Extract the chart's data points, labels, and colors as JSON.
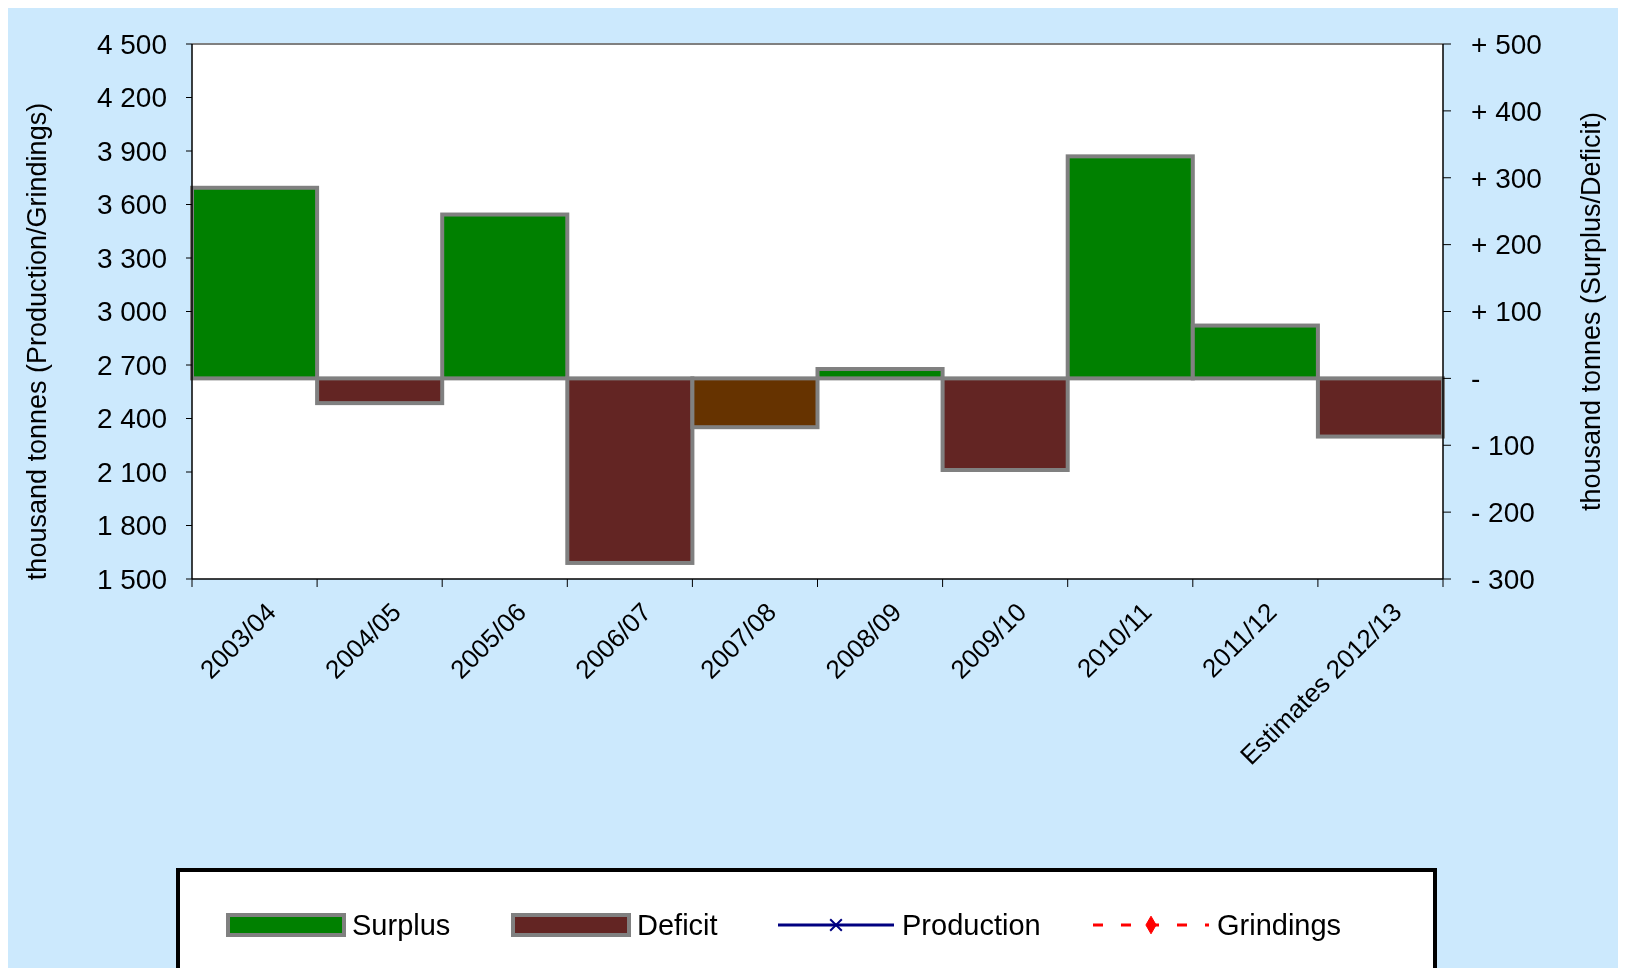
{
  "chart_data": {
    "type": "bar",
    "ylabel": "thousand tonnes (Production/Grindings)",
    "y2label": "thousand tonnes (Surplus/Deficit)",
    "categories": [
      "2003/04",
      "2004/05",
      "2005/06",
      "2006/07",
      "2007/08",
      "2008/09",
      "2009/10",
      "2010/11",
      "2011/12",
      "Estimates 2012/13"
    ],
    "series": [
      {
        "name": "Surplus",
        "axis": "y2",
        "color": "#008000",
        "values": [
          285,
          null,
          245,
          null,
          null,
          14,
          null,
          332,
          79,
          null
        ]
      },
      {
        "name": "Deficit",
        "axis": "y2",
        "color": "#632523",
        "colors": [
          null,
          "#632523",
          null,
          "#632523",
          "#663300",
          null,
          "#632523",
          null,
          null,
          "#632523"
        ],
        "values": [
          null,
          -37,
          null,
          -276,
          -73,
          null,
          -137,
          null,
          null,
          -87
        ]
      },
      {
        "name": "Production",
        "type": "line",
        "axis": "y",
        "color": "#000080",
        "marker": "cross",
        "line_style": "solid",
        "values": [
          null,
          null,
          null,
          null,
          null,
          null,
          null,
          null,
          null,
          null
        ]
      },
      {
        "name": "Grindings",
        "type": "line",
        "axis": "y",
        "color": "#ff0000",
        "marker": "diamond",
        "line_style": "dashed",
        "values": [
          null,
          null,
          null,
          null,
          null,
          null,
          null,
          null,
          null,
          null
        ]
      }
    ],
    "ylim": [
      1500,
      4500
    ],
    "yticks": [
      {
        "value": 1500,
        "label": "1 500"
      },
      {
        "value": 1800,
        "label": "1 800"
      },
      {
        "value": 2100,
        "label": "2 100"
      },
      {
        "value": 2400,
        "label": "2 400"
      },
      {
        "value": 2700,
        "label": "2 700"
      },
      {
        "value": 3000,
        "label": "3 000"
      },
      {
        "value": 3300,
        "label": "3 300"
      },
      {
        "value": 3600,
        "label": "3 600"
      },
      {
        "value": 3900,
        "label": "3 900"
      },
      {
        "value": 4200,
        "label": "4 200"
      },
      {
        "value": 4500,
        "label": "4 500"
      }
    ],
    "y2lim": [
      -300,
      500
    ],
    "y2ticks": [
      {
        "value": -300,
        "label": "- 300"
      },
      {
        "value": -200,
        "label": "- 200"
      },
      {
        "value": -100,
        "label": "- 100"
      },
      {
        "value": 0,
        "label": "-"
      },
      {
        "value": 100,
        "label": "+ 100"
      },
      {
        "value": 200,
        "label": "+ 200"
      },
      {
        "value": 300,
        "label": "+ 300"
      },
      {
        "value": 400,
        "label": "+ 400"
      },
      {
        "value": 500,
        "label": "+ 500"
      }
    ],
    "legend": "bottom",
    "grid": false
  }
}
